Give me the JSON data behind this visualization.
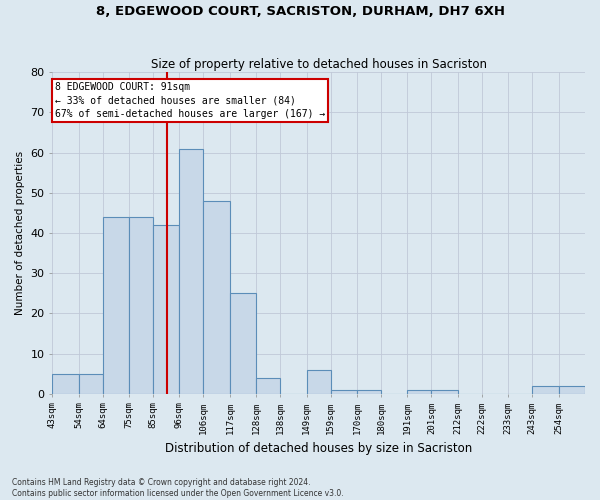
{
  "title1": "8, EDGEWOOD COURT, SACRISTON, DURHAM, DH7 6XH",
  "title2": "Size of property relative to detached houses in Sacriston",
  "xlabel": "Distribution of detached houses by size in Sacriston",
  "ylabel": "Number of detached properties",
  "bin_labels": [
    "43sqm",
    "54sqm",
    "64sqm",
    "75sqm",
    "85sqm",
    "96sqm",
    "106sqm",
    "117sqm",
    "128sqm",
    "138sqm",
    "149sqm",
    "159sqm",
    "170sqm",
    "180sqm",
    "191sqm",
    "201sqm",
    "212sqm",
    "222sqm",
    "233sqm",
    "243sqm",
    "254sqm"
  ],
  "bin_edges": [
    43,
    54,
    64,
    75,
    85,
    96,
    106,
    117,
    128,
    138,
    149,
    159,
    170,
    180,
    191,
    201,
    212,
    222,
    233,
    243,
    254
  ],
  "values": [
    5,
    5,
    44,
    44,
    42,
    61,
    48,
    25,
    4,
    0,
    6,
    1,
    1,
    0,
    1,
    1,
    0,
    0,
    0,
    2,
    2
  ],
  "bar_color": "#c8d8e8",
  "bar_edge_color": "#5b8db8",
  "property_line_x": 91,
  "annotation_text1": "8 EDGEWOOD COURT: 91sqm",
  "annotation_text2": "← 33% of detached houses are smaller (84)",
  "annotation_text3": "67% of semi-detached houses are larger (167) →",
  "annotation_box_color": "#ffffff",
  "annotation_box_edge": "#cc0000",
  "red_line_color": "#cc0000",
  "grid_color": "#c0c8d8",
  "ylim": [
    0,
    80
  ],
  "yticks": [
    0,
    10,
    20,
    30,
    40,
    50,
    60,
    70,
    80
  ],
  "footer1": "Contains HM Land Registry data © Crown copyright and database right 2024.",
  "footer2": "Contains public sector information licensed under the Open Government Licence v3.0.",
  "bg_color": "#dce8f0"
}
